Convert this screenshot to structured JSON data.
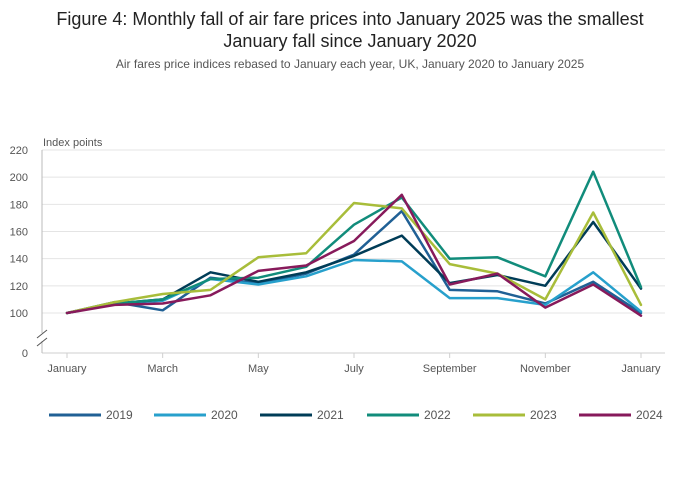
{
  "title_line1": "Figure 4: Monthly fall of air fare prices into January 2025 was the smallest",
  "title_line2": "January fall since January 2020",
  "subtitle": "Air fares price indices rebased to January each year, UK, January 2020 to January 2025",
  "chart_data": {
    "type": "line",
    "ylabel": "Index points",
    "y_ticks": [
      100,
      120,
      140,
      160,
      180,
      200,
      220
    ],
    "y_zero_label": "0",
    "axis_break": true,
    "ylim_display": [
      100,
      220
    ],
    "x": [
      "January",
      "February",
      "March",
      "April",
      "May",
      "June",
      "July",
      "August",
      "September",
      "October",
      "November",
      "December",
      "January"
    ],
    "x_tick_labels": [
      "January",
      "March",
      "May",
      "July",
      "September",
      "November",
      "January"
    ],
    "grid": true,
    "legend_position": "bottom",
    "series": [
      {
        "name": "2019",
        "color": "#206095",
        "values": [
          100,
          108,
          102,
          126,
          122,
          129,
          143,
          175,
          117,
          116,
          107,
          123,
          100
        ]
      },
      {
        "name": "2020",
        "color": "#27a0cc",
        "values": [
          100,
          107,
          109,
          125,
          121,
          127,
          139,
          138,
          111,
          111,
          106,
          130,
          101
        ]
      },
      {
        "name": "2021",
        "color": "#003c57",
        "values": [
          100,
          107,
          110,
          130,
          123,
          130,
          142,
          157,
          122,
          128,
          120,
          167,
          118
        ]
      },
      {
        "name": "2022",
        "color": "#118c7b",
        "values": [
          100,
          107,
          110,
          125,
          126,
          134,
          165,
          185,
          140,
          141,
          127,
          204,
          119
        ]
      },
      {
        "name": "2023",
        "color": "#a8bd3a",
        "values": [
          100,
          108,
          114,
          117,
          141,
          144,
          181,
          177,
          136,
          129,
          110,
          174,
          106
        ]
      },
      {
        "name": "2024",
        "color": "#871a5b",
        "values": [
          100,
          106,
          107,
          113,
          131,
          135,
          153,
          187,
          121,
          129,
          104,
          121,
          98
        ]
      }
    ]
  }
}
